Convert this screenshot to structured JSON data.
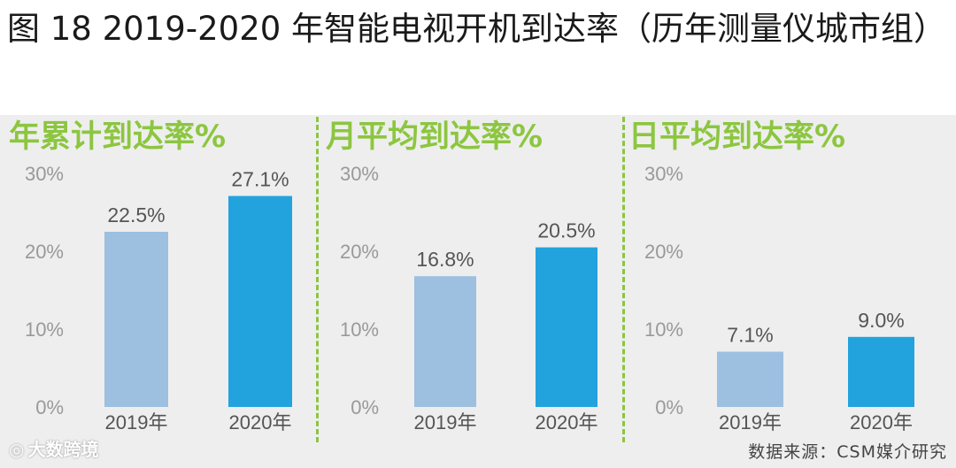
{
  "title": "图 18 2019-2020 年智能电视开机到达率（历年测量仪城市组）",
  "source": "数据来源：CSM媒介研究",
  "watermark": "大数跨境",
  "colors": {
    "accent": "#8cc63f",
    "bar2019": "#9dbfe0",
    "bar2020": "#22a3dd",
    "background": "#eeeeee"
  },
  "chart_data": [
    {
      "type": "bar",
      "title": "年累计到达率%",
      "categories": [
        "2019年",
        "2020年"
      ],
      "values": [
        22.5,
        27.1
      ],
      "value_labels": [
        "22.5%",
        "27.1%"
      ],
      "ylim": [
        0,
        30
      ],
      "yticks": [
        "0%",
        "10%",
        "20%",
        "30%"
      ],
      "grid": false
    },
    {
      "type": "bar",
      "title": "月平均到达率%",
      "categories": [
        "2019年",
        "2020年"
      ],
      "values": [
        16.8,
        20.5
      ],
      "value_labels": [
        "16.8%",
        "20.5%"
      ],
      "ylim": [
        0,
        30
      ],
      "yticks": [
        "0%",
        "10%",
        "20%",
        "30%"
      ],
      "grid": false
    },
    {
      "type": "bar",
      "title": "日平均到达率%",
      "categories": [
        "2019年",
        "2020年"
      ],
      "values": [
        7.1,
        9.0
      ],
      "value_labels": [
        "7.1%",
        "9.0%"
      ],
      "ylim": [
        0,
        30
      ],
      "yticks": [
        "0%",
        "10%",
        "20%",
        "30%"
      ],
      "grid": false
    }
  ]
}
